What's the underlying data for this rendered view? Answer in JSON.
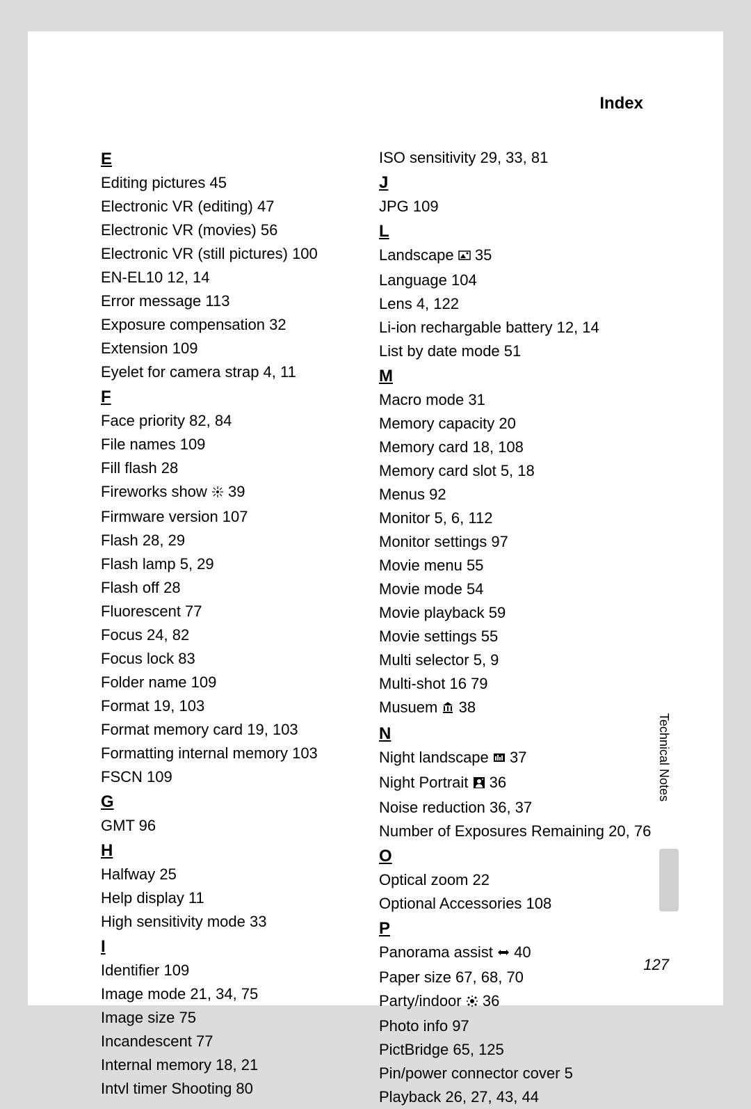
{
  "header": {
    "title": "Index"
  },
  "page_number": "127",
  "side_label": "Technical Notes",
  "icons": {
    "fireworks": "✻",
    "landscape": "🖼",
    "museum": "🏛",
    "night_landscape": "🌃",
    "night_portrait": "👤",
    "panorama": "⋈",
    "party": "❇"
  },
  "styling": {
    "background_color": "#dcdcdc",
    "page_color": "#ffffff",
    "text_color": "#000000",
    "font_size_body": 22,
    "font_size_letter": 24,
    "line_height": 34
  },
  "left_column": [
    {
      "type": "letter",
      "text": "E"
    },
    {
      "type": "entry",
      "text": "Editing pictures 45"
    },
    {
      "type": "entry",
      "text": "Electronic VR (editing) 47"
    },
    {
      "type": "entry",
      "text": "Electronic VR (movies) 56"
    },
    {
      "type": "entry",
      "text": "Electronic VR (still pictures) 100"
    },
    {
      "type": "entry",
      "text": "EN-EL10 12, 14"
    },
    {
      "type": "entry",
      "text": "Error message 113"
    },
    {
      "type": "entry",
      "text": "Exposure compensation 32"
    },
    {
      "type": "entry",
      "text": "Extension 109"
    },
    {
      "type": "entry",
      "text": "Eyelet for camera strap 4, 11"
    },
    {
      "type": "letter",
      "text": "F"
    },
    {
      "type": "entry",
      "text": "Face priority 82, 84"
    },
    {
      "type": "entry",
      "text": "File names 109"
    },
    {
      "type": "entry",
      "text": "Fill flash 28"
    },
    {
      "type": "entry",
      "text": "Fireworks show ",
      "icon": "fireworks",
      "after": " 39"
    },
    {
      "type": "entry",
      "text": "Firmware version 107"
    },
    {
      "type": "entry",
      "text": "Flash 28, 29"
    },
    {
      "type": "entry",
      "text": "Flash lamp 5, 29"
    },
    {
      "type": "entry",
      "text": "Flash off 28"
    },
    {
      "type": "entry",
      "text": "Fluorescent 77"
    },
    {
      "type": "entry",
      "text": "Focus 24, 82"
    },
    {
      "type": "entry",
      "text": "Focus lock 83"
    },
    {
      "type": "entry",
      "text": "Folder name 109"
    },
    {
      "type": "entry",
      "text": "Format 19, 103"
    },
    {
      "type": "entry",
      "text": "Format memory card 19, 103"
    },
    {
      "type": "entry",
      "text": "Formatting internal memory 103"
    },
    {
      "type": "entry",
      "text": "FSCN 109"
    },
    {
      "type": "letter",
      "text": "G"
    },
    {
      "type": "entry",
      "text": "GMT 96"
    },
    {
      "type": "letter",
      "text": "H"
    },
    {
      "type": "entry",
      "text": "Halfway 25"
    },
    {
      "type": "entry",
      "text": "Help display 11"
    },
    {
      "type": "entry",
      "text": "High sensitivity mode 33"
    },
    {
      "type": "letter",
      "text": "I"
    },
    {
      "type": "entry",
      "text": "Identifier 109"
    },
    {
      "type": "entry",
      "text": "Image mode 21, 34, 75"
    },
    {
      "type": "entry",
      "text": "Image size 75"
    },
    {
      "type": "entry",
      "text": "Incandescent 77"
    },
    {
      "type": "entry",
      "text": "Internal memory 18, 21"
    },
    {
      "type": "entry",
      "text": "Intvl timer Shooting 80"
    }
  ],
  "right_column": [
    {
      "type": "entry",
      "text": "ISO sensitivity 29, 33, 81"
    },
    {
      "type": "letter",
      "text": "J"
    },
    {
      "type": "entry",
      "text": "JPG 109"
    },
    {
      "type": "letter",
      "text": "L"
    },
    {
      "type": "entry",
      "text": "Landscape ",
      "icon": "landscape",
      "after": " 35"
    },
    {
      "type": "entry",
      "text": "Language 104"
    },
    {
      "type": "entry",
      "text": "Lens 4, 122"
    },
    {
      "type": "entry",
      "text": "Li-ion rechargable battery 12, 14"
    },
    {
      "type": "entry",
      "text": "List by date mode 51"
    },
    {
      "type": "letter",
      "text": "M"
    },
    {
      "type": "entry",
      "text": "Macro mode 31"
    },
    {
      "type": "entry",
      "text": "Memory capacity 20"
    },
    {
      "type": "entry",
      "text": "Memory card 18, 108"
    },
    {
      "type": "entry",
      "text": "Memory card slot 5, 18"
    },
    {
      "type": "entry",
      "text": "Menus 92"
    },
    {
      "type": "entry",
      "text": "Monitor 5, 6, 112"
    },
    {
      "type": "entry",
      "text": "Monitor settings 97"
    },
    {
      "type": "entry",
      "text": "Movie menu 55"
    },
    {
      "type": "entry",
      "text": "Movie mode 54"
    },
    {
      "type": "entry",
      "text": "Movie playback 59"
    },
    {
      "type": "entry",
      "text": "Movie settings 55"
    },
    {
      "type": "entry",
      "text": "Multi selector 5, 9"
    },
    {
      "type": "entry",
      "text": "Multi-shot 16 79"
    },
    {
      "type": "entry",
      "text": "Musuem ",
      "icon": "museum",
      "after": " 38"
    },
    {
      "type": "letter",
      "text": "N"
    },
    {
      "type": "entry",
      "text": "Night landscape ",
      "icon": "night_landscape",
      "after": " 37"
    },
    {
      "type": "entry",
      "text": "Night Portrait ",
      "icon": "night_portrait",
      "after": " 36"
    },
    {
      "type": "entry",
      "text": "Noise reduction 36, 37"
    },
    {
      "type": "entry",
      "text": "Number of Exposures Remaining 20, 76"
    },
    {
      "type": "letter",
      "text": "O"
    },
    {
      "type": "entry",
      "text": "Optical zoom 22"
    },
    {
      "type": "entry",
      "text": "Optional Accessories 108"
    },
    {
      "type": "letter",
      "text": "P"
    },
    {
      "type": "entry",
      "text": "Panorama assist ",
      "icon": "panorama",
      "after": " 40"
    },
    {
      "type": "entry",
      "text": "Paper size 67, 68, 70"
    },
    {
      "type": "entry",
      "text": "Party/indoor ",
      "icon": "party",
      "after": " 36"
    },
    {
      "type": "entry",
      "text": "Photo info 97"
    },
    {
      "type": "entry",
      "text": "PictBridge 65, 125"
    },
    {
      "type": "entry",
      "text": "Pin/power connector cover 5"
    },
    {
      "type": "entry",
      "text": "Playback 26, 27, 43, 44"
    }
  ]
}
